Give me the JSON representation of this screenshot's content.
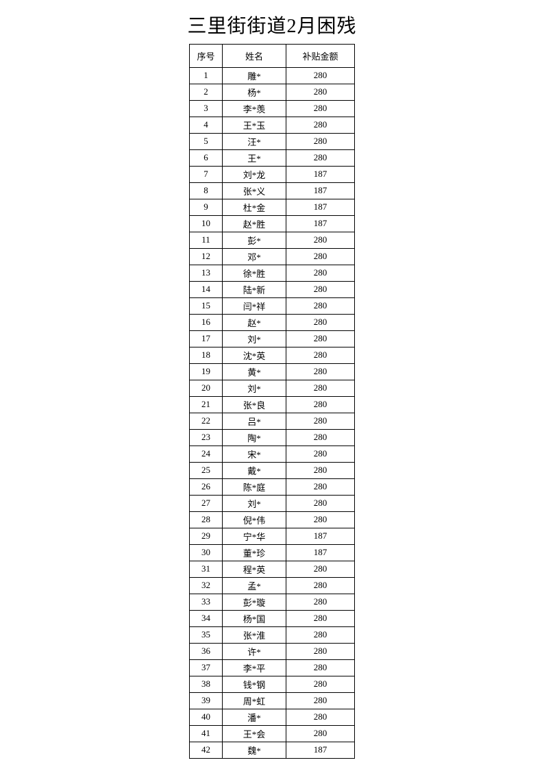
{
  "page": {
    "title": "三里街街道2月困残"
  },
  "table": {
    "headers": [
      "序号",
      "姓名",
      "补贴金额"
    ],
    "rows": [
      {
        "no": "1",
        "name": "雕*",
        "amount": "280"
      },
      {
        "no": "2",
        "name": "杨*",
        "amount": "280"
      },
      {
        "no": "3",
        "name": "李*羡",
        "amount": "280"
      },
      {
        "no": "4",
        "name": "王*玉",
        "amount": "280"
      },
      {
        "no": "5",
        "name": "汪*",
        "amount": "280"
      },
      {
        "no": "6",
        "name": "王*",
        "amount": "280"
      },
      {
        "no": "7",
        "name": "刘*龙",
        "amount": "187"
      },
      {
        "no": "8",
        "name": "张*义",
        "amount": "187"
      },
      {
        "no": "9",
        "name": "杜*金",
        "amount": "187"
      },
      {
        "no": "10",
        "name": "赵*胜",
        "amount": "187"
      },
      {
        "no": "11",
        "name": "彭*",
        "amount": "280"
      },
      {
        "no": "12",
        "name": "邓*",
        "amount": "280"
      },
      {
        "no": "13",
        "name": "徐*胜",
        "amount": "280"
      },
      {
        "no": "14",
        "name": "陆*新",
        "amount": "280"
      },
      {
        "no": "15",
        "name": "闫*祥",
        "amount": "280"
      },
      {
        "no": "16",
        "name": "赵*",
        "amount": "280"
      },
      {
        "no": "17",
        "name": "刘*",
        "amount": "280"
      },
      {
        "no": "18",
        "name": "沈*英",
        "amount": "280"
      },
      {
        "no": "19",
        "name": "黄*",
        "amount": "280"
      },
      {
        "no": "20",
        "name": "刘*",
        "amount": "280"
      },
      {
        "no": "21",
        "name": "张*良",
        "amount": "280"
      },
      {
        "no": "22",
        "name": "吕*",
        "amount": "280"
      },
      {
        "no": "23",
        "name": "陶*",
        "amount": "280"
      },
      {
        "no": "24",
        "name": "宋*",
        "amount": "280"
      },
      {
        "no": "25",
        "name": "戴*",
        "amount": "280"
      },
      {
        "no": "26",
        "name": "陈*庭",
        "amount": "280"
      },
      {
        "no": "27",
        "name": "刘*",
        "amount": "280"
      },
      {
        "no": "28",
        "name": "倪*伟",
        "amount": "280"
      },
      {
        "no": "29",
        "name": "宁*华",
        "amount": "187"
      },
      {
        "no": "30",
        "name": "董*珍",
        "amount": "187"
      },
      {
        "no": "31",
        "name": "程*英",
        "amount": "280"
      },
      {
        "no": "32",
        "name": "孟*",
        "amount": "280"
      },
      {
        "no": "33",
        "name": "彭*璇",
        "amount": "280"
      },
      {
        "no": "34",
        "name": "杨*国",
        "amount": "280"
      },
      {
        "no": "35",
        "name": "张*淮",
        "amount": "280"
      },
      {
        "no": "36",
        "name": "许*",
        "amount": "280"
      },
      {
        "no": "37",
        "name": "李*平",
        "amount": "280"
      },
      {
        "no": "38",
        "name": "钱*钢",
        "amount": "280"
      },
      {
        "no": "39",
        "name": "周*虹",
        "amount": "280"
      },
      {
        "no": "40",
        "name": "潘*",
        "amount": "280"
      },
      {
        "no": "41",
        "name": "王*会",
        "amount": "280"
      },
      {
        "no": "42",
        "name": "魏*",
        "amount": "187"
      }
    ]
  }
}
